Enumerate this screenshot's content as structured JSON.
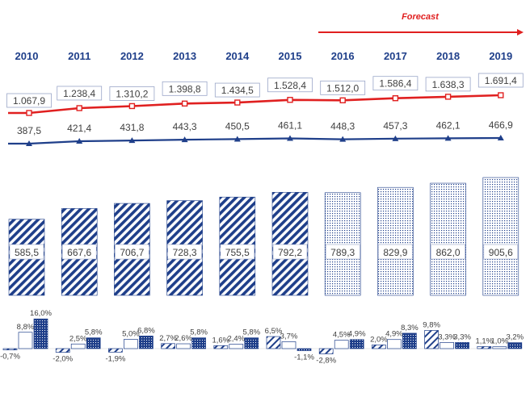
{
  "forecast_label": "Forecast",
  "colors": {
    "navy": "#1f3f8a",
    "red": "#e02020",
    "border": "#1f3f8a",
    "label_text": "#404040"
  },
  "chart_data": [
    {
      "type": "line",
      "categories": [
        "2010",
        "2011",
        "2012",
        "2013",
        "2014",
        "2015",
        "2016",
        "2017",
        "2018",
        "2019"
      ],
      "series": [
        {
          "values": [
            1067.9,
            1238.4,
            1310.2,
            1398.8,
            1434.5,
            1528.4,
            1512.0,
            1586.4,
            1638.3,
            1691.4
          ],
          "labels": [
            "1.067,9",
            "1.238,4",
            "1.310,2",
            "1.398,8",
            "1.434,5",
            "1.528,4",
            "1.512,0",
            "1.586,4",
            "1.638,3",
            "1.691,4"
          ],
          "color": "#e02020",
          "marker": "square"
        },
        {
          "values": [
            387.5,
            421.4,
            431.8,
            443.3,
            450.5,
            461.1,
            448.3,
            457.3,
            462.1,
            466.9
          ],
          "labels": [
            "387,5",
            "421,4",
            "431,8",
            "443,3",
            "450,5",
            "461,1",
            "448,3",
            "457,3",
            "462,1",
            "466,9"
          ],
          "color": "#1f3f8a",
          "marker": "triangle"
        }
      ],
      "forecast_from": "2016"
    },
    {
      "type": "bar",
      "categories": [
        "2010",
        "2011",
        "2012",
        "2013",
        "2014",
        "2015",
        "2016",
        "2017",
        "2018",
        "2019"
      ],
      "values": [
        585.5,
        667.6,
        706.7,
        728.3,
        755.5,
        792.2,
        789.3,
        829.9,
        862.0,
        905.6
      ],
      "labels": [
        "585,5",
        "667,6",
        "706,7",
        "728,3",
        "755,5",
        "792,2",
        "789,3",
        "829,9",
        "862,0",
        "905,6"
      ],
      "pattern_actual": "diagonal stripes",
      "pattern_forecast": "dots"
    },
    {
      "type": "bar",
      "categories": [
        "2010",
        "2011",
        "2012",
        "2013",
        "2014",
        "2015",
        "2016",
        "2017",
        "2018",
        "2019"
      ],
      "series": [
        {
          "values": [
            -0.7,
            -2.0,
            -1.9,
            2.7,
            1.6,
            6.5,
            -2.8,
            2.0,
            9.8,
            1.1
          ],
          "labels": [
            "-0,7%",
            "-2,0%",
            "-1,9%",
            "2,7%",
            "1,6%",
            "6,5%",
            "-2,8%",
            "2,0%",
            "9,8%",
            "1,1%"
          ],
          "pattern": "light stripes"
        },
        {
          "values": [
            8.8,
            2.5,
            5.0,
            2.6,
            2.4,
            3.7,
            4.5,
            4.9,
            3.3,
            1.0
          ],
          "labels": [
            "8,8%",
            "2,5%",
            "5,0%",
            "2,6%",
            "2,4%",
            "3,7%",
            "4,5%",
            "4,9%",
            "3,3%",
            "1,0%"
          ],
          "pattern": "white"
        },
        {
          "values": [
            16.0,
            5.8,
            6.8,
            5.8,
            5.8,
            -1.1,
            4.9,
            8.3,
            3.3,
            3.2
          ],
          "labels": [
            "16,0%",
            "5,8%",
            "6,8%",
            "5,8%",
            "5,8%",
            "-1,1%",
            "4,9%",
            "8,3%",
            "3,3%",
            "3,2%"
          ],
          "pattern": "dense navy"
        }
      ]
    }
  ]
}
